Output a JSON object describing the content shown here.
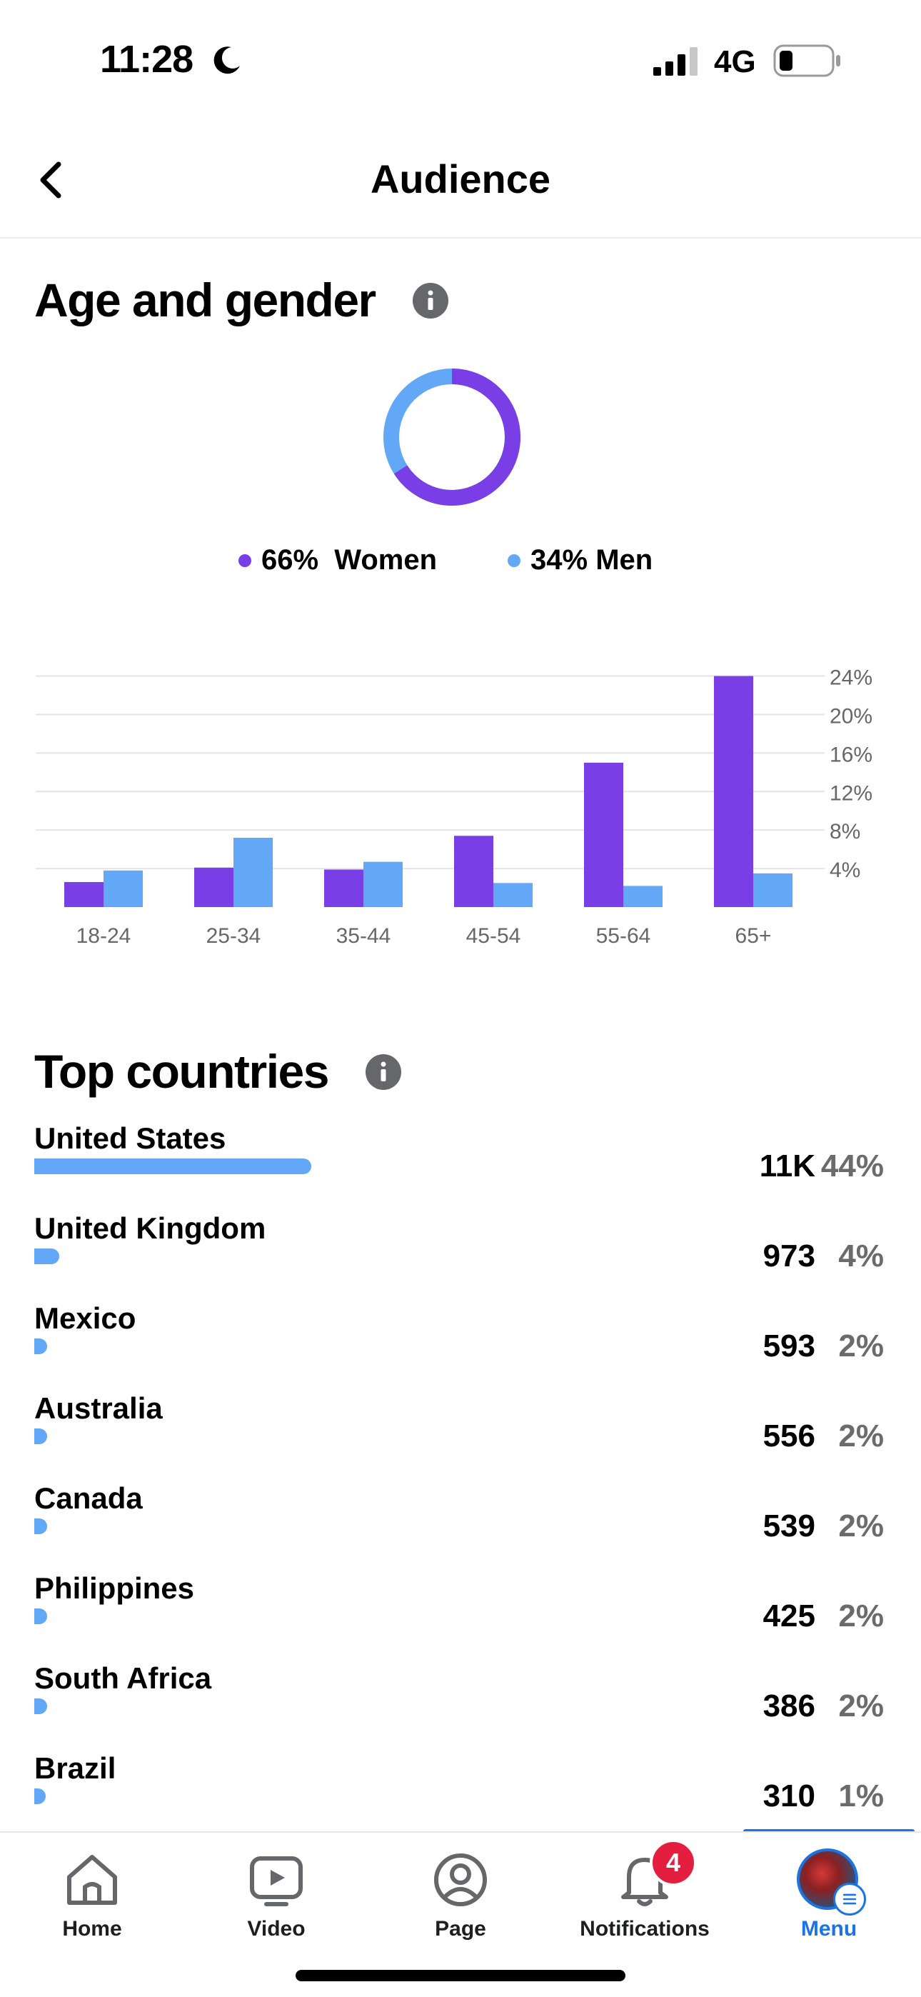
{
  "status": {
    "time": "11:28",
    "network": "4G"
  },
  "header": {
    "title": "Audience"
  },
  "age_gender": {
    "title": "Age and gender",
    "donut": {
      "women": 66,
      "men": 34
    },
    "legend": [
      {
        "pct": "66%",
        "label": "Women",
        "color": "#7a3ee6"
      },
      {
        "pct": "34%",
        "label": "Men",
        "color": "#62a8f7"
      }
    ]
  },
  "chart_data": {
    "type": "bar",
    "categories": [
      "18-24",
      "25-34",
      "35-44",
      "45-54",
      "55-64",
      "65+"
    ],
    "series": [
      {
        "name": "Women",
        "color": "#7a3ee6",
        "values": [
          2.6,
          4.1,
          3.9,
          7.4,
          15,
          24
        ]
      },
      {
        "name": "Men",
        "color": "#62a8f7",
        "values": [
          3.8,
          7.2,
          4.7,
          2.5,
          2.2,
          3.5
        ]
      }
    ],
    "yticks": [
      "24%",
      "20%",
      "16%",
      "12%",
      "8%",
      "4%"
    ],
    "ytick_values": [
      24,
      20,
      16,
      12,
      8,
      4
    ],
    "ylim": [
      0,
      24
    ],
    "grid": true,
    "axis_position": "right"
  },
  "countries": {
    "title": "Top countries",
    "items": [
      {
        "name": "United States",
        "count": "11K",
        "pct": "44%",
        "share": 0.44
      },
      {
        "name": "United Kingdom",
        "count": "973",
        "pct": "4%",
        "share": 0.04
      },
      {
        "name": "Mexico",
        "count": "593",
        "pct": "2%",
        "share": 0.02
      },
      {
        "name": "Australia",
        "count": "556",
        "pct": "2%",
        "share": 0.02
      },
      {
        "name": "Canada",
        "count": "539",
        "pct": "2%",
        "share": 0.02
      },
      {
        "name": "Philippines",
        "count": "425",
        "pct": "2%",
        "share": 0.02
      },
      {
        "name": "South Africa",
        "count": "386",
        "pct": "2%",
        "share": 0.02
      },
      {
        "name": "Brazil",
        "count": "310",
        "pct": "1%",
        "share": 0.01
      }
    ]
  },
  "tabs": [
    {
      "label": "Home",
      "icon": "home-icon"
    },
    {
      "label": "Video",
      "icon": "video-icon"
    },
    {
      "label": "Page",
      "icon": "page-icon"
    },
    {
      "label": "Notifications",
      "icon": "bell-icon",
      "badge": "4"
    },
    {
      "label": "Menu",
      "icon": "avatar",
      "active": true
    }
  ]
}
